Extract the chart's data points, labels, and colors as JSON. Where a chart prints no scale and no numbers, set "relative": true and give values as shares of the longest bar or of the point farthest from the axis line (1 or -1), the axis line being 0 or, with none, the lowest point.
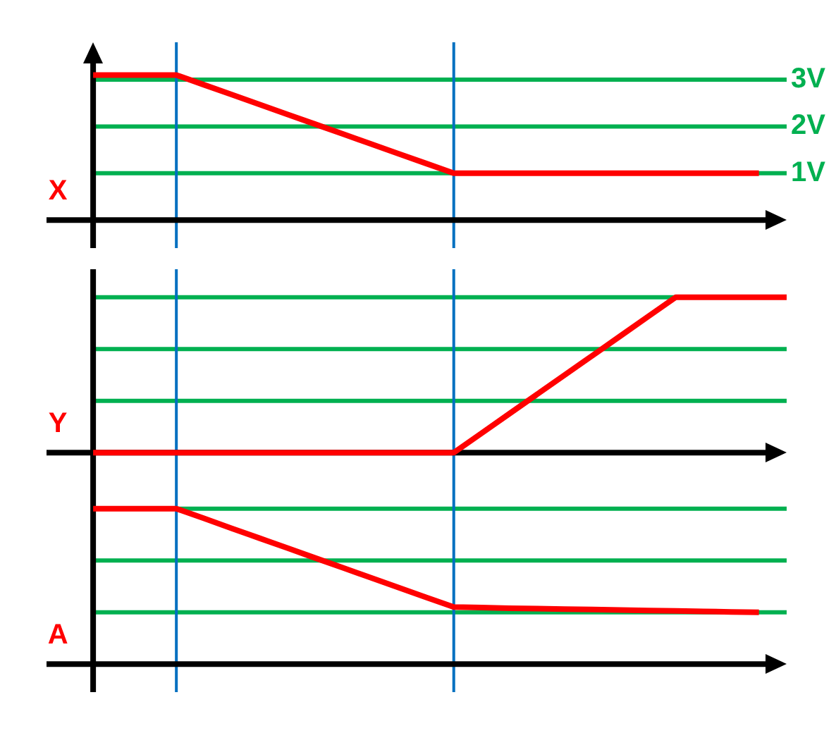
{
  "chart_data": [
    {
      "type": "line",
      "ylabel": "X",
      "categories": [
        null,
        null,
        null,
        null,
        null,
        null,
        null,
        null,
        null,
        null,
        null,
        null,
        null,
        null,
        null,
        null,
        null,
        null,
        null,
        null,
        null,
        null,
        null,
        null,
        null,
        null
      ],
      "values": [
        3.1,
        3.1,
        3.1,
        3.1,
        2.89,
        2.68,
        2.47,
        2.26,
        2.05,
        1.84,
        1.63,
        1.42,
        1.21,
        1,
        1,
        1,
        1,
        1,
        1,
        1,
        1,
        1,
        1,
        1,
        1,
        null
      ],
      "color": "#ff0000",
      "ylim": [
        -0.6,
        3.8
      ],
      "yticks": [
        {
          "value": 1,
          "label": "1V"
        },
        {
          "value": 2,
          "label": "2V"
        },
        {
          "value": 3,
          "label": "3V"
        }
      ],
      "grid": "y",
      "marker": "none",
      "tick_labels": "y"
    },
    {
      "type": "line",
      "ylabel": "Y",
      "relative": true,
      "categories": [
        null,
        null,
        null,
        null,
        null,
        null,
        null,
        null,
        null,
        null,
        null,
        null,
        null,
        null,
        null,
        null,
        null,
        null,
        null,
        null,
        null,
        null,
        null,
        null,
        null,
        null
      ],
      "values": [
        0,
        0,
        0,
        0,
        0,
        0,
        0,
        0,
        0,
        0,
        0,
        0,
        0,
        0,
        0.125,
        0.25,
        0.375,
        0.5,
        0.625,
        0.75,
        0.875,
        1,
        1,
        1,
        1,
        1
      ],
      "color": "#ff0000",
      "marker": "none",
      "tick_labels": false,
      "ref_lines": [
        {
          "axis": "y",
          "value": 0.333,
          "color": "#00b050"
        },
        {
          "axis": "y",
          "value": 0.667,
          "color": "#00b050"
        },
        {
          "axis": "y",
          "value": 1,
          "color": "#00b050"
        }
      ]
    },
    {
      "type": "line",
      "ylabel": "A",
      "relative": true,
      "categories": [
        null,
        null,
        null,
        null,
        null,
        null,
        null,
        null,
        null,
        null,
        null,
        null,
        null,
        null,
        null,
        null,
        null,
        null,
        null,
        null,
        null,
        null,
        null,
        null,
        null,
        null
      ],
      "values": [
        1,
        1,
        1,
        1,
        0.937,
        0.873,
        0.81,
        0.747,
        0.683,
        0.62,
        0.557,
        0.493,
        0.43,
        0.367,
        0.364,
        0.36,
        0.357,
        0.354,
        0.351,
        0.348,
        0.345,
        0.342,
        0.339,
        0.336,
        0.333,
        null
      ],
      "color": "#ff0000",
      "marker": "none",
      "tick_labels": false,
      "ref_lines": [
        {
          "axis": "y",
          "value": 0.333,
          "color": "#00b050"
        },
        {
          "axis": "y",
          "value": 0.667,
          "color": "#00b050"
        },
        {
          "axis": "y",
          "value": 1,
          "color": "#00b050"
        }
      ]
    }
  ]
}
